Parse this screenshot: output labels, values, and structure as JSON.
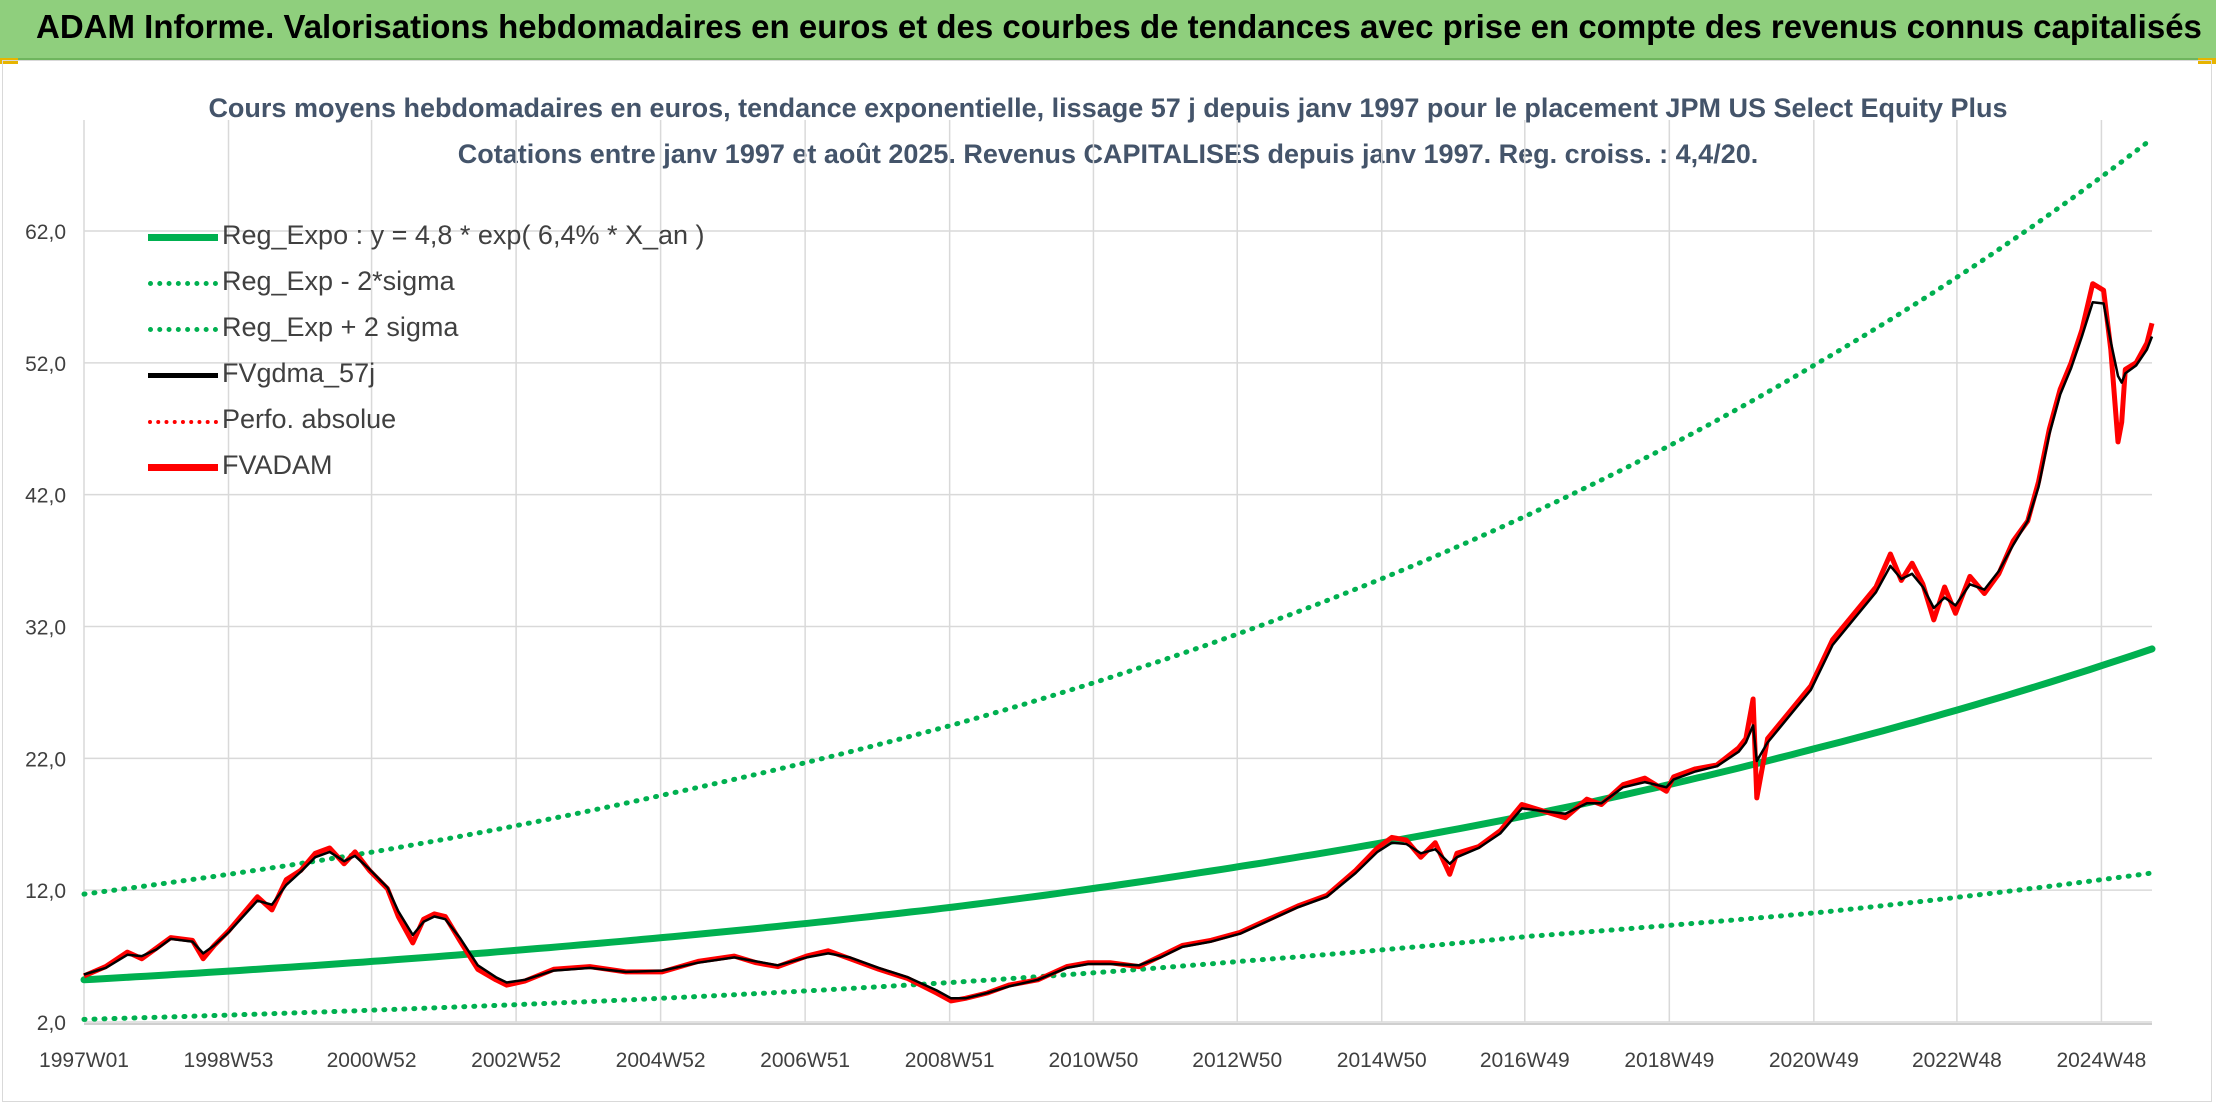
{
  "header": {
    "title": "ADAM Informe. Valorisations hebdomadaires en euros et des courbes de tendances avec prise en compte des revenus connus capitalisés"
  },
  "colors": {
    "header_bg": "#8fcf7d",
    "title_text": "#44546a",
    "trend": "#00b050",
    "smoothed": "#000000",
    "price": "#ff0000",
    "grid": "#d9d9d9"
  },
  "chart_data": {
    "type": "line",
    "title": "Cours moyens hebdomadaires en euros, tendance exponentielle, lissage 57 j depuis janv 1997 pour le placement JPM US Select Equity Plus",
    "subtitle": "Cotations entre janv 1997 et août 2025. Revenus CAPITALISES depuis janv 1997. Reg. croiss. : 4,4/20.",
    "xlabel": "",
    "ylabel": "",
    "x_range": [
      1997.0,
      2025.62
    ],
    "ylim": [
      2,
      69
    ],
    "y_ticks": [
      2,
      12,
      22,
      32,
      42,
      52,
      62
    ],
    "y_tick_labels": [
      "2,0",
      "12,0",
      "22,0",
      "32,0",
      "42,0",
      "52,0",
      "62,0"
    ],
    "x_ticks": [
      1997.0,
      1999.0,
      2000.98,
      2002.98,
      2004.98,
      2006.98,
      2008.98,
      2010.97,
      2012.96,
      2014.96,
      2016.94,
      2018.94,
      2020.94,
      2022.92,
      2024.92
    ],
    "x_tick_labels": [
      "1997W01",
      "1998W53",
      "2000W52",
      "2002W52",
      "2004W52",
      "2006W51",
      "2008W51",
      "2010W50",
      "2012W50",
      "2014W50",
      "2016W49",
      "2018W49",
      "2020W49",
      "2022W48",
      "2024W48"
    ],
    "grid": true,
    "legend_position": "top-left",
    "legend": [
      {
        "label": "Reg_Expo : y = 4,8 * exp( 6,4% *  X_an )",
        "color": "#00b050",
        "style": "solid-thick"
      },
      {
        "label": "Reg_Exp - 2*sigma",
        "color": "#00b050",
        "style": "dotted"
      },
      {
        "label": "Reg_Exp + 2 sigma",
        "color": "#00b050",
        "style": "dotted"
      },
      {
        "label": "FVgdma_57j",
        "color": "#000000",
        "style": "solid"
      },
      {
        "label": "Perfo. absolue",
        "color": "#ff0000",
        "style": "dotted"
      },
      {
        "label": "FVADAM",
        "color": "#ff0000",
        "style": "solid-thick"
      }
    ],
    "trend": {
      "model": "y = 4,8 * exp(6,4% * X_an)",
      "x": [
        1997.0,
        2001.0,
        2005.0,
        2009.0,
        2013.0,
        2017.0,
        2021.0,
        2025.62
      ],
      "reg_expo": [
        5.2,
        6.6,
        8.4,
        10.7,
        13.8,
        17.7,
        22.8,
        30.3
      ],
      "reg_minus_2sigma": [
        2.2,
        2.9,
        3.8,
        5.0,
        6.6,
        8.5,
        10.3,
        13.3
      ],
      "reg_plus_2sigma": [
        11.7,
        14.9,
        19.2,
        24.5,
        31.5,
        40.5,
        52.0,
        69.0
      ]
    },
    "series": [
      {
        "name": "FVADAM",
        "x": [
          1997.0,
          1997.3,
          1997.6,
          1997.8,
          1998.0,
          1998.2,
          1998.5,
          1998.65,
          1998.8,
          1999.0,
          1999.2,
          1999.4,
          1999.6,
          1999.8,
          2000.0,
          2000.2,
          2000.4,
          2000.6,
          2000.75,
          2000.95,
          2001.2,
          2001.35,
          2001.55,
          2001.7,
          2001.85,
          2002.0,
          2002.2,
          2002.45,
          2002.7,
          2002.85,
          2003.1,
          2003.5,
          2004.0,
          2004.5,
          2005.0,
          2005.5,
          2006.0,
          2006.3,
          2006.6,
          2007.0,
          2007.3,
          2007.6,
          2008.0,
          2008.4,
          2008.8,
          2009.0,
          2009.2,
          2009.5,
          2009.8,
          2010.2,
          2010.6,
          2010.9,
          2011.2,
          2011.6,
          2011.9,
          2012.2,
          2012.6,
          2013.0,
          2013.4,
          2013.8,
          2014.2,
          2014.6,
          2014.9,
          2015.1,
          2015.3,
          2015.5,
          2015.7,
          2015.9,
          2016.0,
          2016.3,
          2016.6,
          2016.9,
          2017.2,
          2017.5,
          2017.8,
          2018.0,
          2018.3,
          2018.6,
          2018.9,
          2019.0,
          2019.3,
          2019.6,
          2019.9,
          2020.0,
          2020.1,
          2020.15,
          2020.3,
          2020.6,
          2020.9,
          2021.2,
          2021.5,
          2021.8,
          2022.0,
          2022.15,
          2022.3,
          2022.45,
          2022.6,
          2022.75,
          2022.9,
          2023.1,
          2023.3,
          2023.5,
          2023.7,
          2023.9,
          2024.05,
          2024.2,
          2024.35,
          2024.5,
          2024.65,
          2024.8,
          2024.95,
          2025.05,
          2025.15,
          2025.2,
          2025.25,
          2025.4,
          2025.55,
          2025.62
        ],
        "values": [
          5.5,
          6.2,
          7.3,
          6.8,
          7.6,
          8.4,
          8.2,
          6.8,
          7.8,
          8.9,
          10.2,
          11.5,
          10.5,
          12.8,
          13.5,
          14.8,
          15.2,
          14.0,
          14.9,
          13.5,
          12.1,
          10.0,
          8.0,
          9.8,
          10.2,
          10.0,
          8.2,
          6.0,
          5.2,
          4.8,
          5.1,
          6.0,
          6.2,
          5.8,
          5.8,
          6.6,
          7.0,
          6.5,
          6.2,
          7.0,
          7.4,
          6.8,
          6.0,
          5.3,
          4.2,
          3.6,
          3.8,
          4.2,
          4.8,
          5.2,
          6.2,
          6.5,
          6.5,
          6.2,
          7.0,
          7.8,
          8.2,
          8.8,
          9.8,
          10.8,
          11.6,
          13.5,
          15.2,
          16.0,
          15.8,
          14.5,
          15.6,
          13.2,
          14.8,
          15.3,
          16.5,
          18.5,
          18.0,
          17.5,
          18.9,
          18.5,
          20.0,
          20.5,
          19.5,
          20.6,
          21.2,
          21.5,
          22.8,
          23.5,
          26.5,
          19.0,
          23.5,
          25.5,
          27.5,
          31.0,
          33.0,
          35.0,
          37.5,
          35.5,
          36.8,
          35.2,
          32.5,
          35.0,
          33.0,
          35.8,
          34.5,
          36.0,
          38.5,
          40.0,
          43.0,
          47.0,
          50.0,
          52.0,
          54.5,
          58.0,
          57.5,
          53.0,
          46.0,
          47.5,
          51.5,
          52.0,
          53.5,
          55.0
        ]
      },
      {
        "name": "FVgdma_57j",
        "x": [
          1997.0,
          1997.3,
          1997.6,
          1997.8,
          1998.0,
          1998.2,
          1998.5,
          1998.65,
          1998.8,
          1999.0,
          1999.2,
          1999.4,
          1999.6,
          1999.8,
          2000.0,
          2000.2,
          2000.4,
          2000.6,
          2000.75,
          2000.95,
          2001.2,
          2001.35,
          2001.55,
          2001.7,
          2001.85,
          2002.0,
          2002.2,
          2002.45,
          2002.7,
          2002.85,
          2003.1,
          2003.5,
          2004.0,
          2004.5,
          2005.0,
          2005.5,
          2006.0,
          2006.3,
          2006.6,
          2007.0,
          2007.3,
          2007.6,
          2008.0,
          2008.4,
          2008.8,
          2009.0,
          2009.2,
          2009.5,
          2009.8,
          2010.2,
          2010.6,
          2010.9,
          2011.2,
          2011.6,
          2011.9,
          2012.2,
          2012.6,
          2013.0,
          2013.4,
          2013.8,
          2014.2,
          2014.6,
          2014.9,
          2015.1,
          2015.3,
          2015.5,
          2015.7,
          2015.9,
          2016.0,
          2016.3,
          2016.6,
          2016.9,
          2017.2,
          2017.5,
          2017.8,
          2018.0,
          2018.3,
          2018.6,
          2018.9,
          2019.0,
          2019.3,
          2019.6,
          2019.9,
          2020.0,
          2020.1,
          2020.15,
          2020.3,
          2020.6,
          2020.9,
          2021.2,
          2021.5,
          2021.8,
          2022.0,
          2022.15,
          2022.3,
          2022.45,
          2022.6,
          2022.75,
          2022.9,
          2023.1,
          2023.3,
          2023.5,
          2023.7,
          2023.9,
          2024.05,
          2024.2,
          2024.35,
          2024.5,
          2024.65,
          2024.8,
          2024.95,
          2025.05,
          2025.15,
          2025.2,
          2025.25,
          2025.4,
          2025.55,
          2025.62
        ],
        "values": [
          5.6,
          6.1,
          7.1,
          7.0,
          7.5,
          8.3,
          8.1,
          7.2,
          7.8,
          8.8,
          10.0,
          11.2,
          10.9,
          12.4,
          13.4,
          14.5,
          14.9,
          14.2,
          14.6,
          13.6,
          12.2,
          10.4,
          8.6,
          9.6,
          10.0,
          9.8,
          8.4,
          6.3,
          5.4,
          5.0,
          5.2,
          5.9,
          6.1,
          5.8,
          5.9,
          6.5,
          6.9,
          6.6,
          6.3,
          6.9,
          7.2,
          6.9,
          6.1,
          5.4,
          4.4,
          3.8,
          3.8,
          4.2,
          4.7,
          5.2,
          6.1,
          6.4,
          6.4,
          6.3,
          6.9,
          7.7,
          8.1,
          8.7,
          9.7,
          10.7,
          11.5,
          13.3,
          14.9,
          15.6,
          15.5,
          14.8,
          15.1,
          14.0,
          14.5,
          15.2,
          16.3,
          18.2,
          18.0,
          17.8,
          18.6,
          18.6,
          19.8,
          20.2,
          19.8,
          20.4,
          21.0,
          21.4,
          22.5,
          23.2,
          24.5,
          21.8,
          23.2,
          25.2,
          27.2,
          30.6,
          32.6,
          34.6,
          36.6,
          35.6,
          36.0,
          35.0,
          33.4,
          34.2,
          33.6,
          35.2,
          34.8,
          36.2,
          38.2,
          40.0,
          42.6,
          46.6,
          49.6,
          51.6,
          54.0,
          56.6,
          56.5,
          53.6,
          51.0,
          50.5,
          51.2,
          51.8,
          53.0,
          54.0
        ]
      }
    ]
  }
}
